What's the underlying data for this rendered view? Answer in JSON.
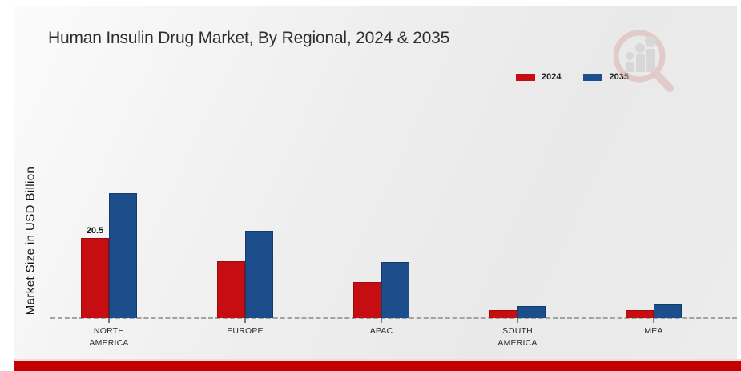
{
  "chart_data": {
    "type": "bar",
    "title": "Human Insulin Drug Market, By Regional, 2024 & 2035",
    "xlabel": "",
    "ylabel": "Market Size in USD Billion",
    "categories": [
      "NORTH AMERICA",
      "EUROPE",
      "APAC",
      "SOUTH AMERICA",
      "MEA"
    ],
    "category_display": [
      "NORTH\nAMERICA",
      "EUROPE",
      "APAC",
      "SOUTH\nAMERICA",
      "MEA"
    ],
    "series": [
      {
        "name": "2024",
        "color": "#c60d12",
        "edge_color": "#9e0a0e",
        "values": [
          20.5,
          14.5,
          9.2,
          2.0,
          2.1
        ],
        "data_labels": [
          "20.5",
          "",
          "",
          "",
          ""
        ]
      },
      {
        "name": "2035",
        "color": "#1b4e8b",
        "edge_color": "#143b6b",
        "values": [
          32.0,
          22.3,
          14.3,
          3.1,
          3.4
        ],
        "data_labels": [
          "",
          "",
          "",
          "",
          ""
        ]
      }
    ],
    "ylim": [
      0,
      36
    ],
    "grid": false,
    "legend_position": "top-right",
    "baseline_style": "dashed",
    "axis_visible": false
  },
  "watermark": {
    "icon": "magnifier-bar-chart-logo"
  },
  "footer": {
    "accent_color": "#c40000"
  }
}
